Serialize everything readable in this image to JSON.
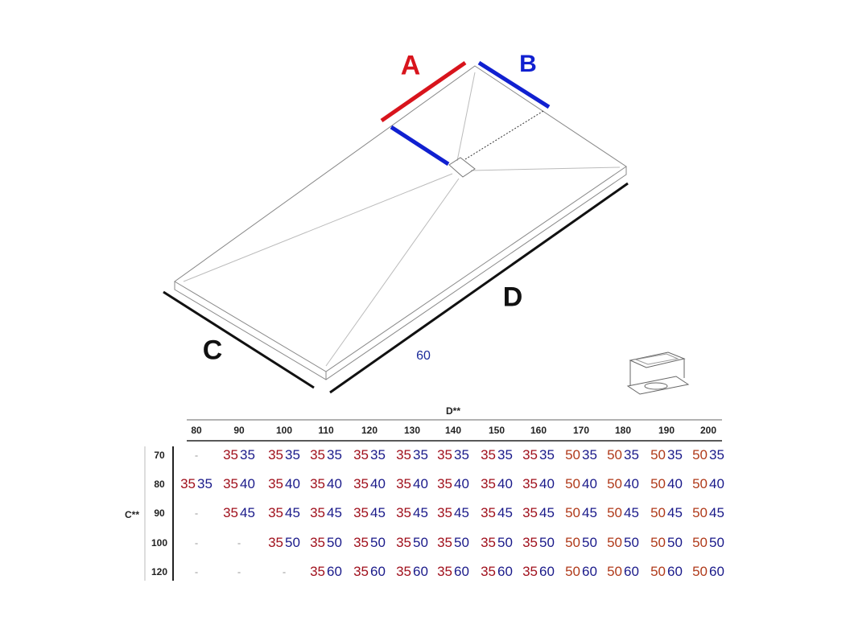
{
  "diagram": {
    "labels": {
      "A": "A",
      "B": "B",
      "C": "C",
      "D": "D",
      "note": "60"
    },
    "colors": {
      "A": "#d8141c",
      "B": "#1020d0",
      "text_dark": "#111111",
      "note": "#1a2a9a"
    },
    "icons": [
      "shower-tray-drawing",
      "drain-icon"
    ]
  },
  "table": {
    "col_axis": "D**",
    "row_axis": "C**",
    "columns": [
      "80",
      "90",
      "100",
      "110",
      "120",
      "130",
      "140",
      "150",
      "160",
      "170",
      "180",
      "190",
      "200"
    ],
    "colors": {
      "first_35": "#a0101c",
      "first_50": "#b03a1a",
      "second": "#1a1a8a",
      "dash": "#999999"
    },
    "rows": [
      {
        "label": "70",
        "cells": [
          "-",
          [
            "35",
            "35"
          ],
          [
            "35",
            "35"
          ],
          [
            "35",
            "35"
          ],
          [
            "35",
            "35"
          ],
          [
            "35",
            "35"
          ],
          [
            "35",
            "35"
          ],
          [
            "35",
            "35"
          ],
          [
            "35",
            "35"
          ],
          [
            "50",
            "35"
          ],
          [
            "50",
            "35"
          ],
          [
            "50",
            "35"
          ],
          [
            "50",
            "35"
          ]
        ]
      },
      {
        "label": "80",
        "cells": [
          [
            "35",
            "35"
          ],
          [
            "35",
            "40"
          ],
          [
            "35",
            "40"
          ],
          [
            "35",
            "40"
          ],
          [
            "35",
            "40"
          ],
          [
            "35",
            "40"
          ],
          [
            "35",
            "40"
          ],
          [
            "35",
            "40"
          ],
          [
            "35",
            "40"
          ],
          [
            "50",
            "40"
          ],
          [
            "50",
            "40"
          ],
          [
            "50",
            "40"
          ],
          [
            "50",
            "40"
          ]
        ]
      },
      {
        "label": "90",
        "cells": [
          "-",
          [
            "35",
            "45"
          ],
          [
            "35",
            "45"
          ],
          [
            "35",
            "45"
          ],
          [
            "35",
            "45"
          ],
          [
            "35",
            "45"
          ],
          [
            "35",
            "45"
          ],
          [
            "35",
            "45"
          ],
          [
            "35",
            "45"
          ],
          [
            "50",
            "45"
          ],
          [
            "50",
            "45"
          ],
          [
            "50",
            "45"
          ],
          [
            "50",
            "45"
          ]
        ]
      },
      {
        "label": "100",
        "cells": [
          "-",
          "-",
          [
            "35",
            "50"
          ],
          [
            "35",
            "50"
          ],
          [
            "35",
            "50"
          ],
          [
            "35",
            "50"
          ],
          [
            "35",
            "50"
          ],
          [
            "35",
            "50"
          ],
          [
            "35",
            "50"
          ],
          [
            "50",
            "50"
          ],
          [
            "50",
            "50"
          ],
          [
            "50",
            "50"
          ],
          [
            "50",
            "50"
          ]
        ]
      },
      {
        "label": "120",
        "cells": [
          "-",
          "-",
          "-",
          [
            "35",
            "60"
          ],
          [
            "35",
            "60"
          ],
          [
            "35",
            "60"
          ],
          [
            "35",
            "60"
          ],
          [
            "35",
            "60"
          ],
          [
            "35",
            "60"
          ],
          [
            "50",
            "60"
          ],
          [
            "50",
            "60"
          ],
          [
            "50",
            "60"
          ],
          [
            "50",
            "60"
          ]
        ]
      }
    ]
  }
}
